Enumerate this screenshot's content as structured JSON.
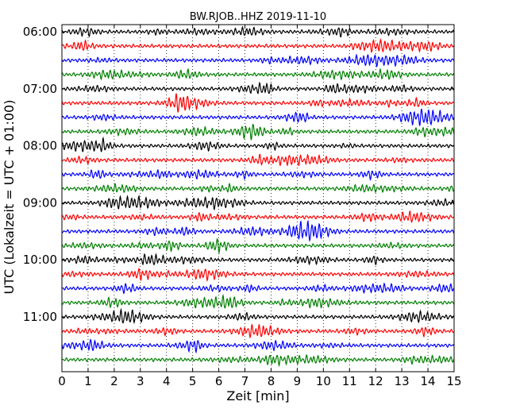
{
  "chart_data": {
    "type": "line",
    "title": "BW.RJOB..HHZ 2019-11-10",
    "xlabel": "Zeit  [min]",
    "ylabel": "UTC (Lokalzeit = UTC + 01:00)",
    "xlim": [
      0,
      15
    ],
    "x_ticks": [
      "0",
      "1",
      "2",
      "3",
      "4",
      "5",
      "6",
      "7",
      "8",
      "9",
      "10",
      "11",
      "12",
      "13",
      "14",
      "15"
    ],
    "y_ticks": [
      "06:00",
      "07:00",
      "08:00",
      "09:00",
      "10:00",
      "11:00"
    ],
    "grid": "vertical dotted lines at each minute",
    "trace_colors": [
      "#000000",
      "#ff0000",
      "#0000ff",
      "#008000"
    ],
    "trace_interval_minutes": 15,
    "trace_start_times": [
      "06:00",
      "06:15",
      "06:30",
      "06:45",
      "07:00",
      "07:15",
      "07:30",
      "07:45",
      "08:00",
      "08:15",
      "08:30",
      "08:45",
      "09:00",
      "09:15",
      "09:30",
      "09:45",
      "10:00",
      "10:15",
      "10:30",
      "10:45",
      "11:00",
      "11:15",
      "11:30",
      "11:45"
    ]
  }
}
